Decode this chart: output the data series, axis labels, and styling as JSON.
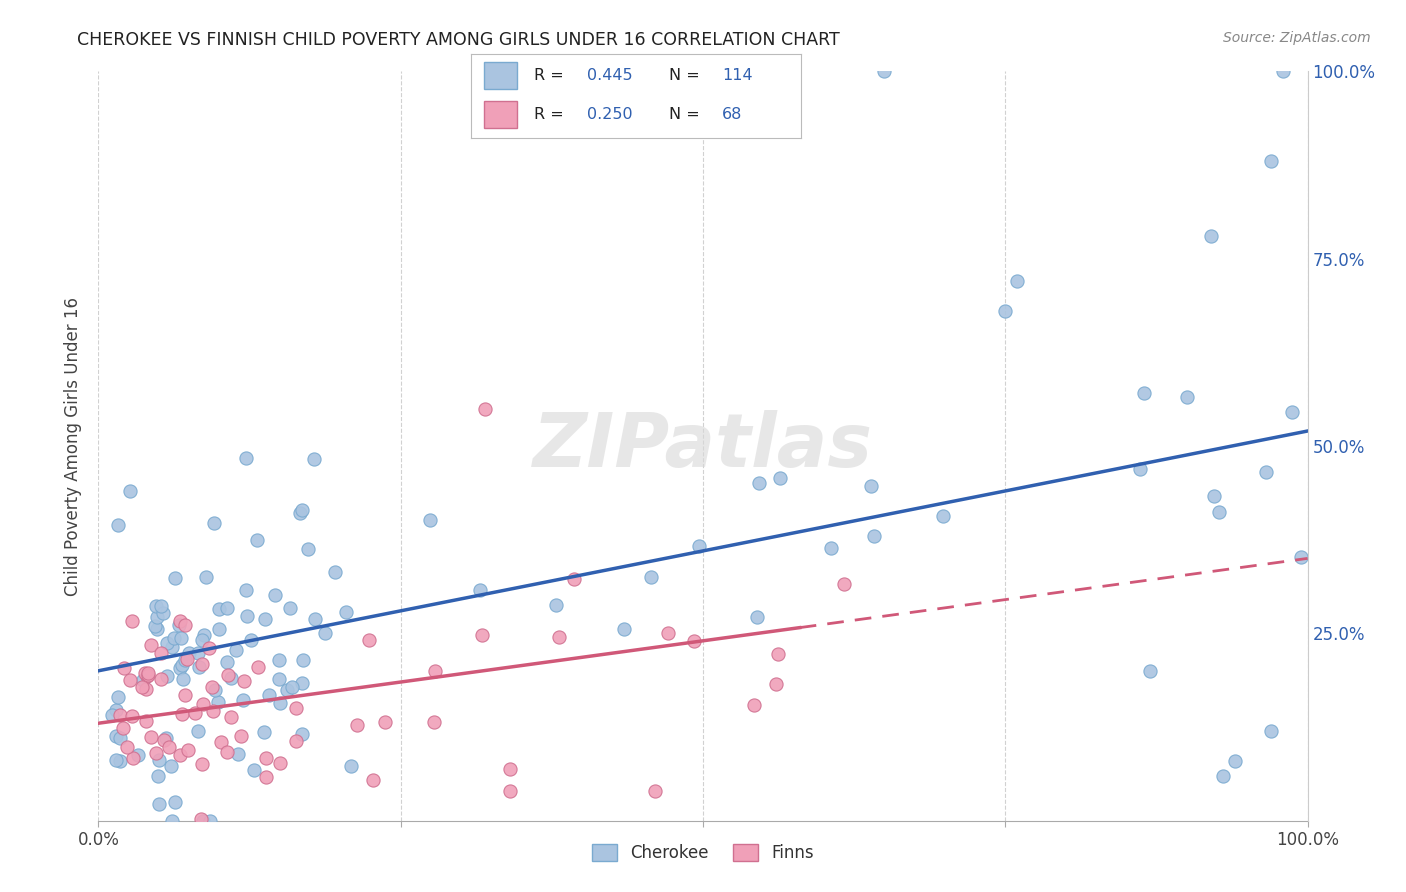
{
  "title": "CHEROKEE VS FINNISH CHILD POVERTY AMONG GIRLS UNDER 16 CORRELATION CHART",
  "source": "Source: ZipAtlas.com",
  "ylabel": "Child Poverty Among Girls Under 16",
  "xlim": [
    0,
    1
  ],
  "ylim": [
    0,
    1
  ],
  "cherokee_color": "#aac4e0",
  "cherokee_edge": "#7aaad0",
  "finn_color": "#f0a0b8",
  "finn_edge": "#d07090",
  "cherokee_line_color": "#3060b0",
  "finn_line_color": "#d05878",
  "cherokee_R": 0.445,
  "cherokee_N": 114,
  "finn_R": 0.25,
  "finn_N": 68,
  "legend_color": "#3060b0",
  "watermark": "ZIPatlas",
  "background_color": "#ffffff",
  "grid_color": "#cccccc",
  "cherokee_intercept": 0.2,
  "cherokee_slope": 0.32,
  "finn_intercept": 0.13,
  "finn_slope": 0.22
}
